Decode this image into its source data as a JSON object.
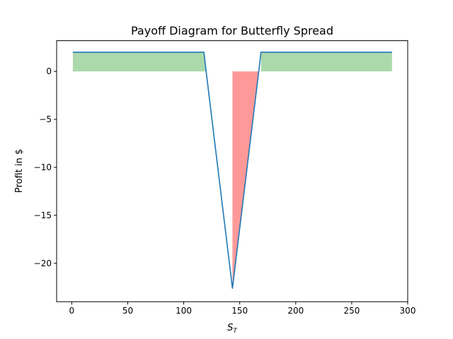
{
  "chart_data": {
    "type": "line",
    "title": "Payoff Diagram for Butterfly Spread",
    "xlabel": {
      "main": "S",
      "sub": "T"
    },
    "ylabel": "Profit in $",
    "xlim": [
      -13.5,
      300
    ],
    "ylim": [
      -24,
      3.2
    ],
    "x_ticks": [
      0,
      50,
      100,
      150,
      200,
      250,
      300
    ],
    "y_ticks": [
      0,
      -5,
      -10,
      -15,
      -20
    ],
    "x_tick_labels": [
      "0",
      "50",
      "100",
      "150",
      "200",
      "250",
      "300"
    ],
    "y_tick_labels": [
      "0",
      "−5",
      "−10",
      "−15",
      "−20"
    ],
    "grid": false,
    "series": [
      {
        "x": [
          1,
          118,
          120,
          143.5,
          167,
          169,
          286
        ],
        "y": [
          2,
          2,
          0,
          -22.6,
          0,
          2,
          2
        ],
        "color": "#1f77b4"
      }
    ],
    "fill_positive_color": "#2ca02c",
    "fill_negative_color": "#ff0000",
    "fill_alpha": 0.4
  }
}
